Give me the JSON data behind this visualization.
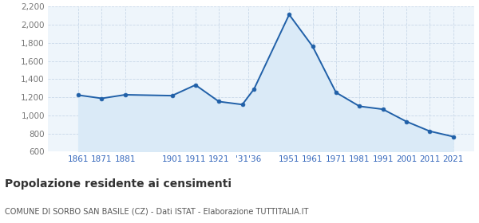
{
  "years": [
    1861,
    1871,
    1881,
    1901,
    1911,
    1921,
    1931,
    1936,
    1951,
    1961,
    1971,
    1981,
    1991,
    2001,
    2011,
    2021
  ],
  "population": [
    1224,
    1188,
    1228,
    1218,
    1336,
    1153,
    1120,
    1291,
    2113,
    1762,
    1253,
    1101,
    1068,
    933,
    826,
    766
  ],
  "line_color": "#2060a8",
  "fill_color": "#daeaf7",
  "marker_color": "#2060a8",
  "plot_bg_color": "#eef5fb",
  "fig_bg_color": "#ffffff",
  "grid_color": "#c8d8e8",
  "ylim": [
    600,
    2200
  ],
  "yticks": [
    600,
    800,
    1000,
    1200,
    1400,
    1600,
    1800,
    2000,
    2200
  ],
  "xlim_left": 1848,
  "xlim_right": 2030,
  "xtick_positions": [
    1861,
    1871,
    1881,
    1901,
    1911,
    1921,
    1933.5,
    1951,
    1961,
    1971,
    1981,
    1991,
    2001,
    2011,
    2021
  ],
  "xtick_labels": [
    "1861",
    "1871",
    "1881",
    "1901",
    "1911",
    "1921",
    "'31'36",
    "1951",
    "1961",
    "1971",
    "1981",
    "1991",
    "2001",
    "2011",
    "2021"
  ],
  "title": "Popolazione residente ai censimenti",
  "subtitle": "COMUNE DI SORBO SAN BASILE (CZ) - Dati ISTAT - Elaborazione TUTTITALIA.IT",
  "title_fontsize": 10,
  "subtitle_fontsize": 7,
  "tick_fontsize": 7.5,
  "ytick_color": "#777777",
  "xtick_color": "#3366bb"
}
